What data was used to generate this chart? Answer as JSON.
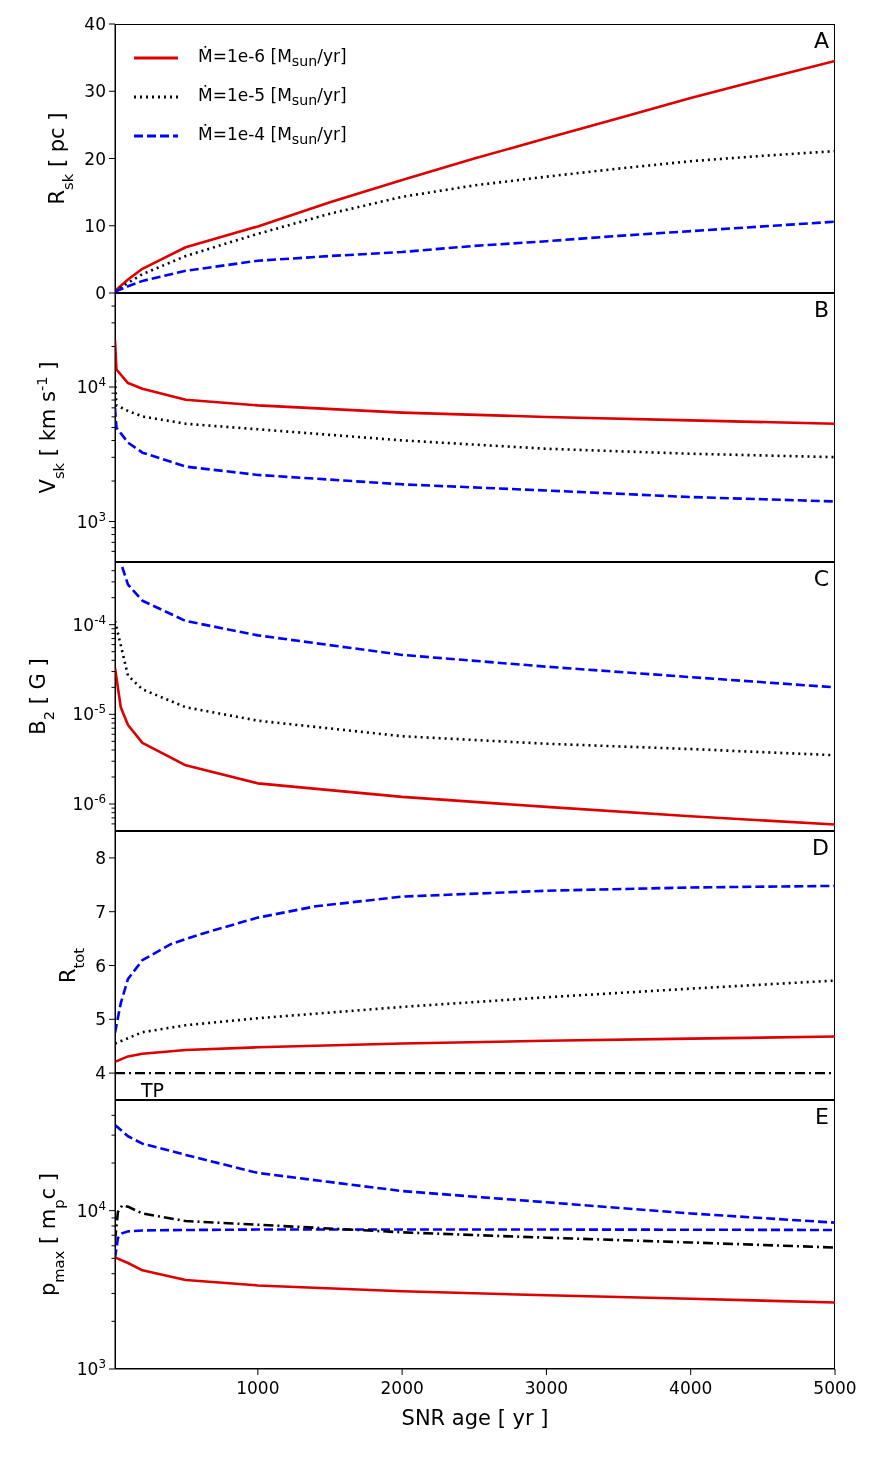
{
  "chart_data": [
    {
      "type": "line",
      "ylabel": "R$_{sk}$ [ pc ]",
      "annotations": [
        "A"
      ],
      "xlim": [
        10,
        5000
      ],
      "xticks": [
        1000,
        2000,
        3000,
        4000,
        5000
      ],
      "ylim": [
        0,
        40
      ],
      "yticks": [
        0,
        10,
        20,
        30,
        40
      ],
      "tick_labels": "y",
      "legend": "top left",
      "series": [
        {
          "name": "Ṁ=1e-6 [M$_{sun}$/yr]",
          "color": "#dd0000",
          "line_style": "solid",
          "x": [
            10,
            100,
            200,
            500,
            1000,
            1500,
            2000,
            2500,
            3000,
            3500,
            4000,
            4500,
            5000
          ],
          "values": [
            0.3,
            2.0,
            3.6,
            6.8,
            9.9,
            13.5,
            16.8,
            20,
            23,
            26,
            29,
            31.8,
            34.5
          ]
        },
        {
          "name": "Ṁ=1e-5 [M$_{sun}$/yr]",
          "color": "#000000",
          "line_style": "dotted",
          "x": [
            10,
            100,
            200,
            500,
            1000,
            1500,
            2000,
            2500,
            3000,
            3500,
            4000,
            4500,
            5000
          ],
          "values": [
            0.2,
            1.5,
            2.8,
            5.5,
            8.8,
            11.8,
            14.3,
            16,
            17.3,
            18.5,
            19.6,
            20.4,
            21.1
          ]
        },
        {
          "name": "Ṁ=1e-4 [M$_{sun}$/yr]",
          "color": "#0000ff",
          "line_style": "dashed",
          "x": [
            10,
            100,
            200,
            500,
            1000,
            1500,
            2000,
            2500,
            3000,
            3500,
            4000,
            4500,
            5000
          ],
          "values": [
            0.2,
            1.0,
            1.8,
            3.3,
            4.8,
            5.5,
            6.1,
            7,
            7.7,
            8.5,
            9.2,
            9.9,
            10.6
          ]
        }
      ]
    },
    {
      "type": "line",
      "ylabel": "V$_{sk}$ [ km s$^{-1}$ ]",
      "annotations": [
        "B"
      ],
      "xlim": [
        10,
        5000
      ],
      "xticks": [
        1000,
        2000,
        3000,
        4000,
        5000
      ],
      "log": true,
      "ylim": [
        500,
        50000
      ],
      "yticks": [
        {
          "value": 600,
          "label": null
        },
        {
          "value": 700,
          "label": null
        },
        {
          "value": 800,
          "label": null
        },
        {
          "value": 900,
          "label": null
        },
        {
          "value": 1000,
          "label": "10$^{3}$"
        },
        {
          "value": 2000,
          "label": null
        },
        {
          "value": 3000,
          "label": null
        },
        {
          "value": 4000,
          "label": null
        },
        {
          "value": 5000,
          "label": null
        },
        {
          "value": 6000,
          "label": null
        },
        {
          "value": 7000,
          "label": null
        },
        {
          "value": 8000,
          "label": null
        },
        {
          "value": 9000,
          "label": null
        },
        {
          "value": 10000,
          "label": "10$^{4}$"
        },
        {
          "value": 20000,
          "label": null
        },
        {
          "value": 30000,
          "label": null
        },
        {
          "value": 40000,
          "label": null
        }
      ],
      "tick_labels": "y",
      "series": [
        {
          "color": "#dd0000",
          "line_style": "solid",
          "x": [
            10,
            20,
            100,
            200,
            500,
            1000,
            2000,
            3000,
            4000,
            5000
          ],
          "values": [
            22200,
            13500,
            10700,
            9700,
            8030,
            7300,
            6450,
            5990,
            5650,
            5330
          ]
        },
        {
          "color": "#000000",
          "line_style": "dotted",
          "x": [
            10,
            20,
            100,
            200,
            500,
            1000,
            2000,
            3000,
            4000,
            5000
          ],
          "values": [
            11200,
            7300,
            6640,
            6040,
            5330,
            4850,
            4010,
            3475,
            3190,
            3010
          ]
        },
        {
          "color": "#0000ff",
          "line_style": "dashed",
          "x": [
            10,
            20,
            100,
            200,
            500,
            1000,
            2000,
            3000,
            4000,
            5000
          ],
          "values": [
            7000,
            4990,
            3860,
            3250,
            2560,
            2220,
            1890,
            1700,
            1520,
            1410
          ]
        }
      ]
    },
    {
      "type": "line",
      "ylabel": "B$_{2}$ [ G ]",
      "annotations": [
        "C"
      ],
      "xlim": [
        10,
        5000
      ],
      "xticks": [
        1000,
        2000,
        3000,
        4000,
        5000
      ],
      "log": true,
      "ylim": [
        5e-07,
        0.0005
      ],
      "yticks": [
        {
          "value": 6e-07,
          "label": null
        },
        {
          "value": 7e-07,
          "label": null
        },
        {
          "value": 8e-07,
          "label": null
        },
        {
          "value": 9e-07,
          "label": null
        },
        {
          "value": 1e-06,
          "label": "10$^{-6}$"
        },
        {
          "value": 2e-06,
          "label": null
        },
        {
          "value": 3e-06,
          "label": null
        },
        {
          "value": 4e-06,
          "label": null
        },
        {
          "value": 5e-06,
          "label": null
        },
        {
          "value": 6e-06,
          "label": null
        },
        {
          "value": 7e-06,
          "label": null
        },
        {
          "value": 8e-06,
          "label": null
        },
        {
          "value": 9e-06,
          "label": null
        },
        {
          "value": 1e-05,
          "label": "10$^{-5}$"
        },
        {
          "value": 2e-05,
          "label": null
        },
        {
          "value": 3e-05,
          "label": null
        },
        {
          "value": 4e-05,
          "label": null
        },
        {
          "value": 5e-05,
          "label": null
        },
        {
          "value": 6e-05,
          "label": null
        },
        {
          "value": 7e-05,
          "label": null
        },
        {
          "value": 8e-05,
          "label": null
        },
        {
          "value": 9e-05,
          "label": null
        },
        {
          "value": 0.0001,
          "label": "10$^{-4}$"
        },
        {
          "value": 0.0002,
          "label": null
        },
        {
          "value": 0.0003,
          "label": null
        },
        {
          "value": 0.0004,
          "label": null
        }
      ],
      "tick_labels": "y",
      "series": [
        {
          "color": "#dd0000",
          "line_style": "solid",
          "x": [
            10,
            50,
            100,
            200,
            500,
            1000,
            2000,
            3000,
            4000,
            5000
          ],
          "values": [
            3.3e-05,
            1.2e-05,
            7.6e-06,
            4.8e-06,
            2.7e-06,
            1.7e-06,
            1.2e-06,
            9.3e-07,
            7.3e-07,
            5.9e-07
          ]
        },
        {
          "color": "#000000",
          "line_style": "dotted",
          "x": [
            10,
            100,
            200,
            500,
            1000,
            2000,
            3000,
            4000,
            5000
          ],
          "values": [
            0.00011,
            2.7e-05,
            1.9e-05,
            1.2e-05,
            8.5e-06,
            5.7e-06,
            4.7e-06,
            4.1e-06,
            3.5e-06
          ]
        },
        {
          "color": "#0000ff",
          "line_style": "dashed",
          "x": [
            60,
            100,
            200,
            500,
            1000,
            2000,
            3000,
            4000,
            5000
          ],
          "values": [
            0.00044,
            0.00028,
            0.000185,
            0.00011,
            7.6e-05,
            4.6e-05,
            3.4e-05,
            2.6e-05,
            2e-05
          ]
        }
      ]
    },
    {
      "type": "line",
      "ylabel": "R$_{tot}$",
      "annotations": [
        "D"
      ],
      "xlim": [
        10,
        5000
      ],
      "xticks": [
        1000,
        2000,
        3000,
        4000,
        5000
      ],
      "ylim": [
        3.5,
        8.5
      ],
      "yticks": [
        4,
        5,
        6,
        7,
        8
      ],
      "tick_labels": "y",
      "ref_lines": [
        {
          "axis": "y",
          "value": 4,
          "label": "TP",
          "color": "#000000",
          "line_style": "dashdot"
        }
      ],
      "series": [
        {
          "color": "#dd0000",
          "line_style": "solid",
          "x": [
            10,
            100,
            200,
            500,
            1000,
            2000,
            3000,
            4000,
            5000
          ],
          "values": [
            4.21,
            4.31,
            4.36,
            4.43,
            4.48,
            4.55,
            4.6,
            4.64,
            4.68
          ]
        },
        {
          "color": "#000000",
          "line_style": "dotted",
          "x": [
            10,
            200,
            500,
            1000,
            2000,
            3000,
            4000,
            5000
          ],
          "values": [
            4.55,
            4.76,
            4.89,
            5.02,
            5.23,
            5.41,
            5.57,
            5.72
          ]
        },
        {
          "color": "#0000ff",
          "line_style": "dashed",
          "x": [
            10,
            50,
            100,
            200,
            400,
            600,
            1000,
            1400,
            2000,
            3000,
            4000,
            5000
          ],
          "values": [
            4.75,
            5.3,
            5.75,
            6.1,
            6.4,
            6.58,
            6.89,
            7.1,
            7.28,
            7.39,
            7.45,
            7.48
          ]
        }
      ]
    },
    {
      "type": "line",
      "xlabel": "SNR age [ yr ]",
      "ylabel": "p$_{max}$ [ m$_{p}$c ]",
      "annotations": [
        "E"
      ],
      "xlim": [
        10,
        5000
      ],
      "xticks": [
        1000,
        2000,
        3000,
        4000,
        5000
      ],
      "log": true,
      "ylim": [
        1000,
        50000
      ],
      "yticks": [
        {
          "value": 1000,
          "label": "10$^{3}$"
        },
        {
          "value": 2000,
          "label": null
        },
        {
          "value": 3000,
          "label": null
        },
        {
          "value": 4000,
          "label": null
        },
        {
          "value": 5000,
          "label": null
        },
        {
          "value": 6000,
          "label": null
        },
        {
          "value": 7000,
          "label": null
        },
        {
          "value": 8000,
          "label": null
        },
        {
          "value": 9000,
          "label": null
        },
        {
          "value": 10000,
          "label": "10$^{4}$"
        },
        {
          "value": 20000,
          "label": null
        },
        {
          "value": 30000,
          "label": null
        },
        {
          "value": 40000,
          "label": null
        }
      ],
      "series": [
        {
          "color": "#0000ff",
          "line_style": "dashed",
          "x": [
            10,
            100,
            200,
            500,
            1000,
            2000,
            3000,
            4000,
            5000
          ],
          "values": [
            34800,
            29500,
            26500,
            22500,
            17300,
            13300,
            11300,
            9600,
            8400
          ]
        },
        {
          "color": "#0000ff",
          "line_style": "dashed",
          "x": [
            10,
            30,
            60,
            100,
            200,
            500,
            1000,
            2000,
            3000,
            4000,
            5000
          ],
          "values": [
            5000,
            6700,
            7200,
            7400,
            7500,
            7550,
            7600,
            7600,
            7600,
            7580,
            7550
          ]
        },
        {
          "color": "#000000",
          "line_style": "dashdot",
          "x": [
            10,
            30,
            60,
            100,
            200,
            500,
            1000,
            2000,
            3000,
            4000,
            5000
          ],
          "values": [
            6500,
            9800,
            10800,
            10600,
            9600,
            8600,
            8150,
            7300,
            6750,
            6300,
            5850
          ]
        },
        {
          "color": "#dd0000",
          "line_style": "solid",
          "x": [
            10,
            100,
            200,
            500,
            1000,
            2000,
            3000,
            4000,
            5000
          ],
          "values": [
            5070,
            4670,
            4200,
            3650,
            3370,
            3100,
            2920,
            2780,
            2630
          ]
        }
      ]
    }
  ]
}
